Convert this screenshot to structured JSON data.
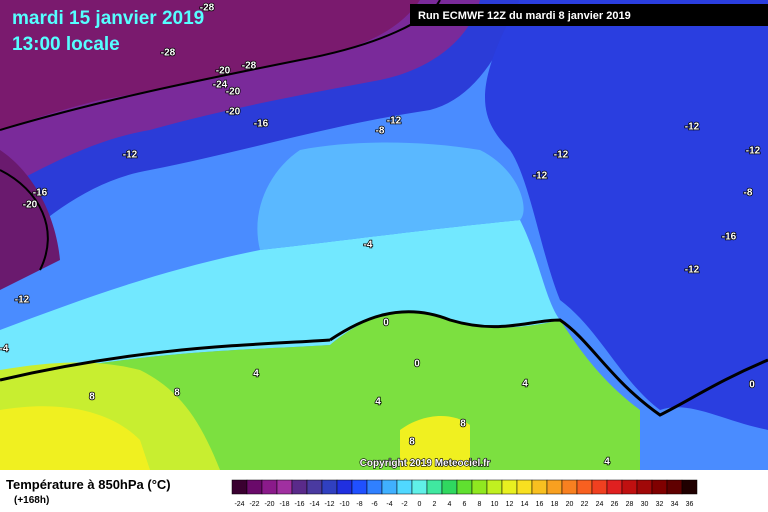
{
  "header": {
    "date": "mardi 15 janvier 2019",
    "time": "13:00 locale",
    "run": "Run ECMWF 12Z du mardi 8 janvier 2019"
  },
  "contour_labels": [
    -28,
    -28,
    -28,
    -20,
    -24,
    -20,
    -20,
    -16,
    -12,
    -8,
    -12,
    -16,
    -20,
    -12,
    -12,
    -12,
    -12,
    -8,
    -16,
    -12,
    -4,
    -12,
    -4,
    0,
    0,
    4,
    8,
    8,
    4,
    4,
    8,
    8,
    4,
    0
  ],
  "footer": {
    "title": "Température à 850hPa (°C)",
    "lead": "(+168h)",
    "copyright": "Copyright 2019 Meteociel.fr"
  },
  "scale": {
    "ticks": [
      -24,
      -22,
      -20,
      -18,
      -16,
      -14,
      -12,
      -10,
      -8,
      -6,
      -4,
      -2,
      0,
      2,
      4,
      6,
      8,
      10,
      12,
      14,
      16,
      18,
      20,
      22,
      24,
      26,
      28,
      30,
      32,
      34,
      36
    ],
    "colors": [
      "#3a0030",
      "#6a0a6a",
      "#8a1a8a",
      "#a030a0",
      "#5a2a8a",
      "#4a3aa0",
      "#3040c0",
      "#2030e0",
      "#2050ff",
      "#3080ff",
      "#40b0ff",
      "#50d8ff",
      "#60f0e8",
      "#40e8a0",
      "#30d860",
      "#60e030",
      "#90e820",
      "#c0f020",
      "#e8f020",
      "#f8e020",
      "#f8c020",
      "#f8a020",
      "#f88020",
      "#f86020",
      "#f04020",
      "#e02020",
      "#c01010",
      "#a00808",
      "#800000",
      "#600000",
      "#200000"
    ]
  }
}
